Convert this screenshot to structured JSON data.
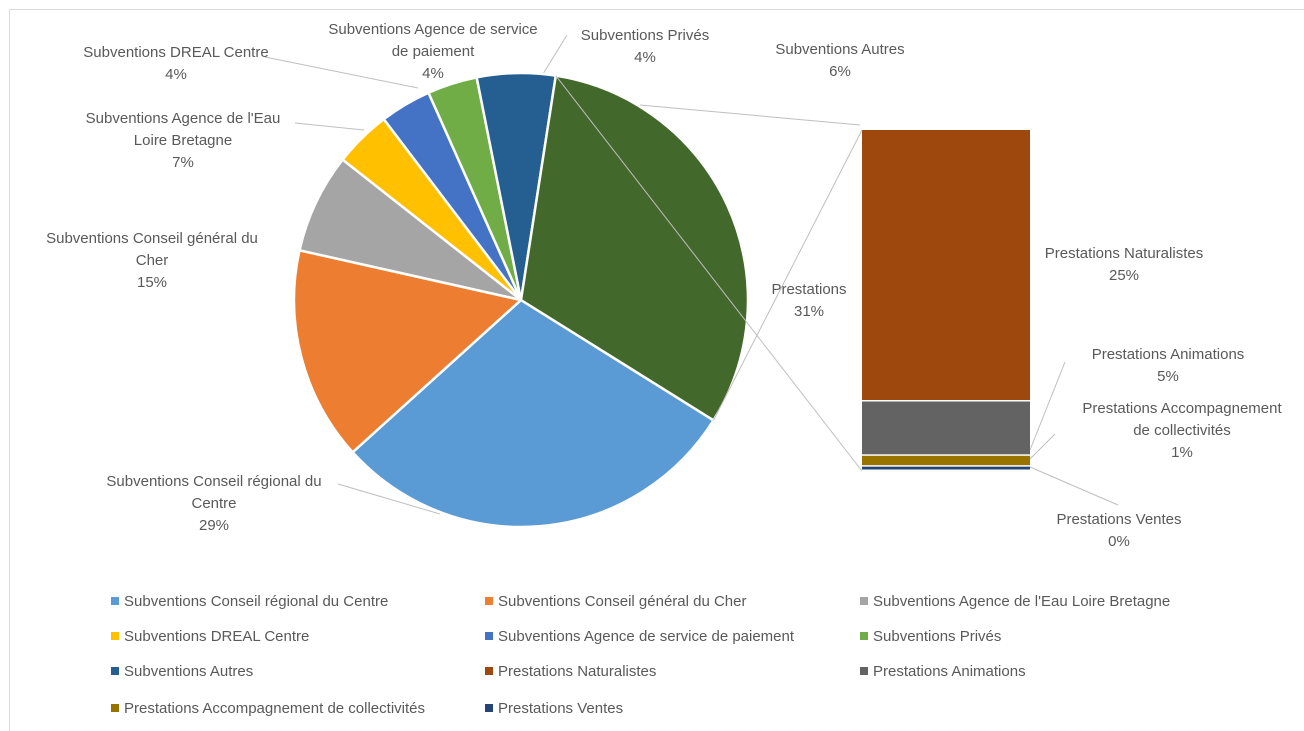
{
  "chart_data": {
    "type": "bar-of-pie",
    "title": "",
    "colors": {
      "Subventions Conseil régional du Centre": "#5b9bd5",
      "Subventions Conseil général du Cher": "#ed7d31",
      "Subventions Agence de l'Eau Loire Bretagne": "#a5a5a5",
      "Subventions DREAL Centre": "#ffc000",
      "Subventions Agence de service de paiement": "#4472c4",
      "Subventions Privés": "#70ad47",
      "Subventions Autres": "#255e91",
      "Prestations": "#43682b",
      "Prestations Naturalistes": "#9e480e",
      "Prestations Animations": "#636363",
      "Prestations Accompagnement de collectivités": "#997300",
      "Prestations Ventes": "#264478"
    },
    "pie_slices": [
      {
        "name": "Subventions Conseil régional du Centre",
        "value": 29,
        "label_lines": [
          "Subventions Conseil régional du",
          "Centre",
          "29%"
        ]
      },
      {
        "name": "Subventions Conseil général du Cher",
        "value": 15,
        "label_lines": [
          "Subventions Conseil général du",
          "Cher",
          "15%"
        ]
      },
      {
        "name": "Subventions Agence de l'Eau Loire Bretagne",
        "value": 7,
        "label_lines": [
          "Subventions Agence de l'Eau",
          "Loire Bretagne",
          "7%"
        ]
      },
      {
        "name": "Subventions DREAL Centre",
        "value": 4,
        "label_lines": [
          "Subventions DREAL Centre",
          "4%"
        ]
      },
      {
        "name": "Subventions Agence de service de paiement",
        "value": 3.6,
        "label_lines": [
          "Subventions Agence de service",
          "de paiement",
          "4%"
        ]
      },
      {
        "name": "Subventions Privés",
        "value": 3.5,
        "label_lines": [
          "Subventions Privés",
          "4%"
        ]
      },
      {
        "name": "Subventions Autres",
        "value": 5.5,
        "label_lines": [
          "Subventions Autres",
          "6%"
        ]
      },
      {
        "name": "Prestations",
        "value": 31,
        "label_lines": [
          "Prestations",
          "31%"
        ]
      }
    ],
    "bar_segments": [
      {
        "name": "Prestations Naturalistes",
        "value": 25,
        "label_lines": [
          "Prestations Naturalistes",
          "25%"
        ]
      },
      {
        "name": "Prestations Animations",
        "value": 5,
        "label_lines": [
          "Prestations Animations",
          "5%"
        ]
      },
      {
        "name": "Prestations Accompagnement de collectivités",
        "value": 1,
        "label_lines": [
          "Prestations Accompagnement",
          "de collectivités",
          "1%"
        ]
      },
      {
        "name": "Prestations Ventes",
        "value": 0.4,
        "label_lines": [
          "Prestations Ventes",
          "0%"
        ]
      }
    ],
    "legend": {
      "position": "bottom",
      "entries": [
        "Subventions Conseil régional du Centre",
        "Subventions Conseil général du Cher",
        "Subventions Agence de l'Eau Loire Bretagne",
        "Subventions DREAL Centre",
        "Subventions Agence de service de paiement",
        "Subventions Privés",
        "Subventions Autres",
        "Prestations Naturalistes",
        "Prestations Animations",
        "Prestations Accompagnement de collectivités",
        "Prestations Ventes"
      ]
    }
  }
}
